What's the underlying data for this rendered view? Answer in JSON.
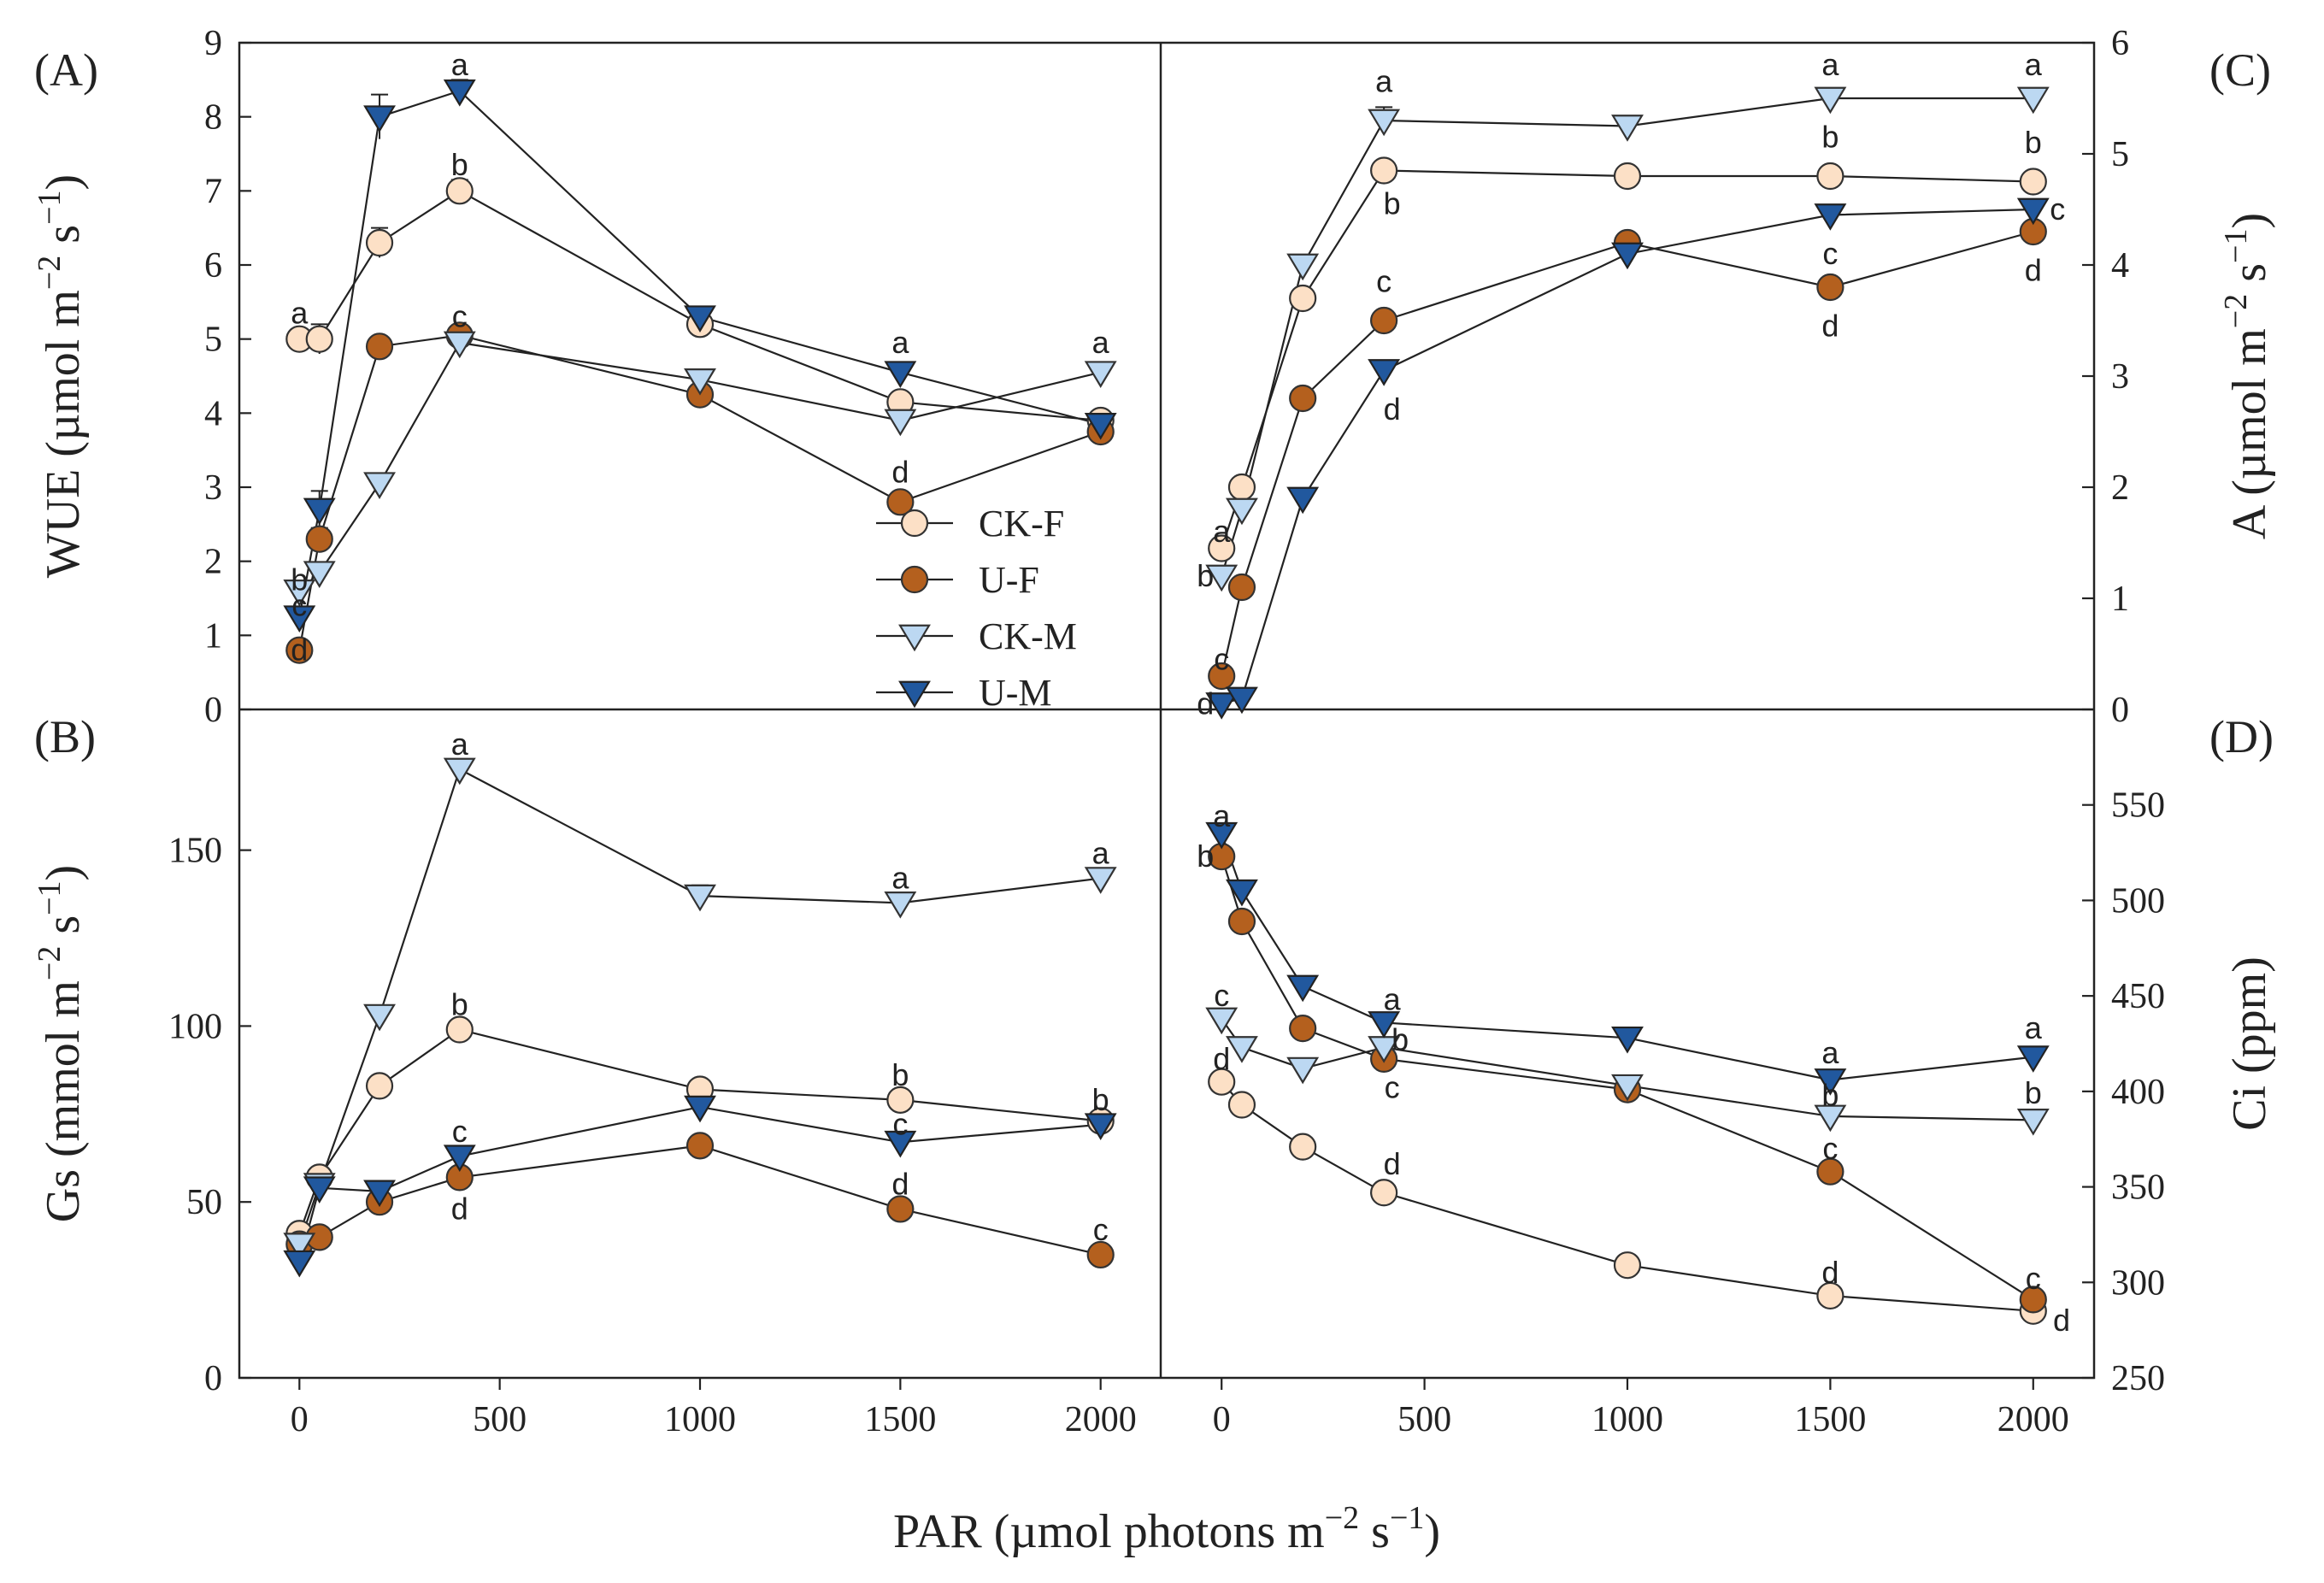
{
  "styles": {
    "CK-F": {
      "marker": "circle",
      "fill": "#fce0c6",
      "stroke": "#333333"
    },
    "U-F": {
      "marker": "circle",
      "fill": "#b4601e",
      "stroke": "#333333"
    },
    "CK-M": {
      "marker": "triangle-down",
      "fill": "#bcd8f2",
      "stroke": "#333333"
    },
    "U-M": {
      "marker": "triangle-down",
      "fill": "#21589e",
      "stroke": "#222222"
    }
  },
  "legend": [
    "CK-F",
    "U-F",
    "CK-M",
    "U-M"
  ],
  "xlabel": {
    "main": "PAR (µmol photons m",
    "sup1": "−2",
    "mid": " s",
    "sup2": "−1",
    "end": ")"
  },
  "chart_data": [
    {
      "id": "A",
      "panel_label": "(A)",
      "type": "line",
      "ylabel": {
        "main": "WUE (µmol m",
        "sup1": "−2",
        "mid": " s",
        "sup2": "−1",
        "end": ")"
      },
      "ylim": [
        0,
        9
      ],
      "yticks": [
        "0",
        "1",
        "2",
        "3",
        "4",
        "5",
        "6",
        "7",
        "8",
        "9"
      ],
      "xlim": [
        -150,
        2150
      ],
      "xticks": [
        "0",
        "500",
        "1000",
        "1500",
        "2000"
      ],
      "x": [
        0,
        50,
        200,
        400,
        1000,
        1500,
        2000
      ],
      "series": [
        {
          "name": "CK-F",
          "values": [
            5.0,
            5.0,
            6.3,
            7.0,
            5.2,
            4.15,
            3.9
          ],
          "errors": [
            0,
            0.2,
            0.2,
            0.15,
            0,
            0,
            0
          ]
        },
        {
          "name": "U-F",
          "values": [
            0.8,
            2.3,
            4.9,
            5.05,
            4.25,
            2.8,
            3.75
          ],
          "errors": [
            0,
            0.15,
            0,
            0,
            0,
            0,
            0
          ]
        },
        {
          "name": "CK-M",
          "values": [
            1.6,
            1.85,
            3.05,
            4.95,
            4.45,
            3.9,
            4.55
          ],
          "errors": [
            0,
            0,
            0,
            0,
            0,
            0,
            0
          ]
        },
        {
          "name": "U-M",
          "values": [
            1.25,
            2.7,
            8.0,
            8.35,
            5.3,
            4.55,
            3.85
          ],
          "errors": [
            0,
            0.25,
            0.3,
            0.15,
            0,
            0,
            0
          ]
        }
      ],
      "annotations": [
        {
          "text": "a",
          "x": 0,
          "y": 5.35
        },
        {
          "text": "b",
          "x": 0,
          "y": 1.75
        },
        {
          "text": "c",
          "x": 0,
          "y": 1.4
        },
        {
          "text": "d",
          "x": 0,
          "y": 0.8
        },
        {
          "text": "a",
          "x": 400,
          "y": 8.7
        },
        {
          "text": "b",
          "x": 400,
          "y": 7.35
        },
        {
          "text": "c",
          "x": 400,
          "y": 5.3
        },
        {
          "text": "a",
          "x": 1500,
          "y": 4.95
        },
        {
          "text": "d",
          "x": 1500,
          "y": 3.2
        },
        {
          "text": "a",
          "x": 2000,
          "y": 4.95
        }
      ]
    },
    {
      "id": "C",
      "panel_label": "(C)",
      "type": "line",
      "ylabel": {
        "main": "A (µmol m",
        "sup1": "−2",
        "mid": " s",
        "sup2": "−1",
        "end": ")"
      },
      "ylim": [
        0,
        6
      ],
      "yticks": [
        "0",
        "1",
        "2",
        "3",
        "4",
        "5",
        "6"
      ],
      "xlim": [
        -150,
        2150
      ],
      "xticks": [
        "0",
        "500",
        "1000",
        "1500",
        "2000"
      ],
      "x": [
        0,
        50,
        200,
        400,
        1000,
        1500,
        2000
      ],
      "series": [
        {
          "name": "CK-F",
          "values": [
            1.45,
            2.0,
            3.7,
            4.85,
            4.8,
            4.8,
            4.75
          ],
          "errors": [
            0,
            0,
            0,
            0,
            0,
            0,
            0
          ]
        },
        {
          "name": "U-F",
          "values": [
            0.3,
            1.1,
            2.8,
            3.5,
            4.2,
            3.8,
            4.3
          ],
          "errors": [
            0,
            0,
            0,
            0,
            0,
            0,
            0
          ]
        },
        {
          "name": "CK-M",
          "values": [
            1.2,
            1.8,
            4.0,
            5.3,
            5.25,
            5.5,
            5.5
          ],
          "errors": [
            0,
            0,
            0,
            0.12,
            0,
            0,
            0
          ]
        },
        {
          "name": "U-M",
          "values": [
            0.05,
            0.1,
            1.9,
            3.05,
            4.1,
            4.45,
            4.5
          ],
          "errors": [
            0,
            0,
            0,
            0,
            0,
            0,
            0
          ]
        }
      ],
      "annotations": [
        {
          "text": "a",
          "x": 0,
          "y": 1.6
        },
        {
          "text": "b",
          "x": -40,
          "y": 1.2
        },
        {
          "text": "c",
          "x": 0,
          "y": 0.45
        },
        {
          "text": "d",
          "x": -40,
          "y": 0.05
        },
        {
          "text": "a",
          "x": 400,
          "y": 5.65
        },
        {
          "text": "b",
          "x": 420,
          "y": 4.55
        },
        {
          "text": "c",
          "x": 400,
          "y": 3.85
        },
        {
          "text": "d",
          "x": 420,
          "y": 2.7
        },
        {
          "text": "a",
          "x": 1500,
          "y": 5.8
        },
        {
          "text": "b",
          "x": 1500,
          "y": 5.15
        },
        {
          "text": "c",
          "x": 1500,
          "y": 4.1
        },
        {
          "text": "d",
          "x": 1500,
          "y": 3.45
        },
        {
          "text": "a",
          "x": 2000,
          "y": 5.8
        },
        {
          "text": "b",
          "x": 2000,
          "y": 5.1
        },
        {
          "text": "c",
          "x": 2060,
          "y": 4.5
        },
        {
          "text": "d",
          "x": 2000,
          "y": 3.95
        }
      ]
    },
    {
      "id": "B",
      "panel_label": "(B)",
      "type": "line",
      "ylabel": {
        "main": "Gs (mmol m",
        "sup1": "−2",
        "mid": " s",
        "sup2": "−1",
        "end": ")"
      },
      "ylim": [
        0,
        190
      ],
      "yticks": [
        "0",
        "50",
        "100",
        "150"
      ],
      "ytick_values": [
        0,
        50,
        100,
        150
      ],
      "xlim": [
        -150,
        2150
      ],
      "xticks": [
        "0",
        "500",
        "1000",
        "1500",
        "2000"
      ],
      "x": [
        0,
        50,
        200,
        400,
        1000,
        1500,
        2000
      ],
      "series": [
        {
          "name": "CK-F",
          "values": [
            41,
            57,
            83,
            99,
            82,
            79,
            73
          ],
          "errors": [
            0,
            0,
            0,
            0,
            0,
            0,
            0
          ]
        },
        {
          "name": "U-F",
          "values": [
            38,
            40,
            50,
            57,
            66,
            48,
            35
          ],
          "errors": [
            0,
            0,
            0,
            0,
            0,
            0,
            0
          ]
        },
        {
          "name": "CK-M",
          "values": [
            38,
            55,
            103,
            173,
            137,
            135,
            142
          ],
          "errors": [
            0,
            0,
            0,
            0,
            3,
            0,
            0
          ]
        },
        {
          "name": "U-M",
          "values": [
            33,
            54,
            53,
            63,
            77,
            67,
            72
          ],
          "errors": [
            0,
            0,
            0,
            0,
            0,
            0,
            0
          ]
        }
      ],
      "annotations": [
        {
          "text": "a",
          "x": 400,
          "y": 180
        },
        {
          "text": "b",
          "x": 400,
          "y": 106
        },
        {
          "text": "c",
          "x": 400,
          "y": 70
        },
        {
          "text": "d",
          "x": 400,
          "y": 48
        },
        {
          "text": "a",
          "x": 1500,
          "y": 142
        },
        {
          "text": "b",
          "x": 1500,
          "y": 86
        },
        {
          "text": "c",
          "x": 1500,
          "y": 72
        },
        {
          "text": "d",
          "x": 1500,
          "y": 55
        },
        {
          "text": "a",
          "x": 2000,
          "y": 149
        },
        {
          "text": "b",
          "x": 2000,
          "y": 79
        },
        {
          "text": "c",
          "x": 2000,
          "y": 42
        }
      ]
    },
    {
      "id": "D",
      "panel_label": "(D)",
      "type": "line",
      "ylabel": {
        "main": "Ci (ppm)",
        "sup1": "",
        "mid": "",
        "sup2": "",
        "end": ""
      },
      "ylim": [
        250,
        600
      ],
      "yticks": [
        "250",
        "300",
        "350",
        "400",
        "450",
        "500",
        "550"
      ],
      "ytick_values": [
        250,
        300,
        350,
        400,
        450,
        500,
        550
      ],
      "xlim": [
        -150,
        2150
      ],
      "xticks": [
        "0",
        "500",
        "1000",
        "1500",
        "2000"
      ],
      "x": [
        0,
        50,
        200,
        400,
        1000,
        1500,
        2000
      ],
      "series": [
        {
          "name": "CK-F",
          "values": [
            405,
            393,
            371,
            347,
            309,
            293,
            285
          ],
          "errors": [
            0,
            0,
            0,
            0,
            0,
            0,
            0
          ]
        },
        {
          "name": "U-F",
          "values": [
            523,
            489,
            433,
            417,
            401,
            358,
            291
          ],
          "errors": [
            0,
            0,
            0,
            0,
            0,
            0,
            0
          ]
        },
        {
          "name": "CK-M",
          "values": [
            438,
            423,
            412,
            423,
            403,
            387,
            385
          ],
          "errors": [
            0,
            0,
            0,
            0,
            0,
            0,
            0
          ]
        },
        {
          "name": "U-M",
          "values": [
            535,
            505,
            455,
            436,
            428,
            406,
            418
          ],
          "errors": [
            0,
            0,
            0,
            0,
            0,
            0,
            0
          ]
        }
      ],
      "annotations": [
        {
          "text": "a",
          "x": 0,
          "y": 544
        },
        {
          "text": "b",
          "x": -40,
          "y": 523
        },
        {
          "text": "c",
          "x": 0,
          "y": 450
        },
        {
          "text": "d",
          "x": 0,
          "y": 417
        },
        {
          "text": "a",
          "x": 420,
          "y": 448
        },
        {
          "text": "b",
          "x": 440,
          "y": 427
        },
        {
          "text": "c",
          "x": 420,
          "y": 402
        },
        {
          "text": "d",
          "x": 420,
          "y": 362
        },
        {
          "text": "a",
          "x": 1500,
          "y": 420
        },
        {
          "text": "b",
          "x": 1500,
          "y": 398
        },
        {
          "text": "c",
          "x": 1500,
          "y": 370
        },
        {
          "text": "d",
          "x": 1500,
          "y": 305
        },
        {
          "text": "a",
          "x": 2000,
          "y": 433
        },
        {
          "text": "b",
          "x": 2000,
          "y": 399
        },
        {
          "text": "c",
          "x": 2000,
          "y": 302
        },
        {
          "text": "d",
          "x": 2070,
          "y": 280
        }
      ]
    }
  ]
}
